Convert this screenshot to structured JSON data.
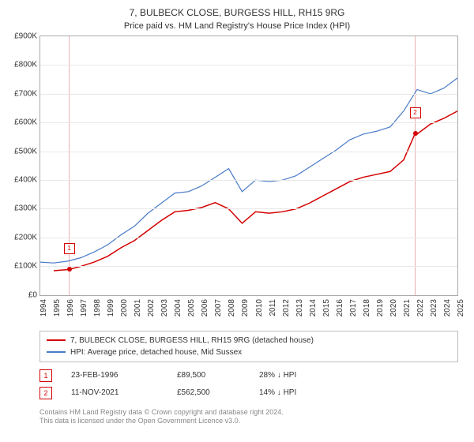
{
  "title": "7, BULBECK CLOSE, BURGESS HILL, RH15 9RG",
  "subtitle": "Price paid vs. HM Land Registry's House Price Index (HPI)",
  "chart": {
    "type": "line",
    "background_color": "#ffffff",
    "grid_color": "#e8e8e8",
    "axis_color": "#aaaaaa",
    "label_fontsize": 10,
    "yaxis": {
      "min": 0,
      "max": 900000,
      "tick_step": 100000,
      "ticks": [
        "£0",
        "£100K",
        "£200K",
        "£300K",
        "£400K",
        "£500K",
        "£600K",
        "£700K",
        "£800K",
        "£900K"
      ]
    },
    "xaxis": {
      "min": 1994,
      "max": 2025,
      "labels": [
        "1994",
        "1995",
        "1996",
        "1997",
        "1998",
        "1999",
        "2000",
        "2001",
        "2002",
        "2003",
        "2004",
        "2005",
        "2006",
        "2007",
        "2008",
        "2009",
        "2010",
        "2011",
        "2012",
        "2013",
        "2014",
        "2015",
        "2016",
        "2017",
        "2018",
        "2019",
        "2020",
        "2021",
        "2022",
        "2023",
        "2024",
        "2025"
      ]
    },
    "series": [
      {
        "name": "property",
        "color": "#d40000",
        "line_width": 1.5,
        "legend_label": "7, BULBECK CLOSE, BURGESS HILL, RH15 9RG (detached house)",
        "points": [
          [
            1995.0,
            85000
          ],
          [
            1996.15,
            89500
          ],
          [
            1997,
            100000
          ],
          [
            1998,
            115000
          ],
          [
            1999,
            135000
          ],
          [
            2000,
            165000
          ],
          [
            2001,
            190000
          ],
          [
            2002,
            225000
          ],
          [
            2003,
            260000
          ],
          [
            2004,
            290000
          ],
          [
            2005,
            295000
          ],
          [
            2006,
            305000
          ],
          [
            2007,
            322000
          ],
          [
            2008,
            300000
          ],
          [
            2009,
            250000
          ],
          [
            2010,
            290000
          ],
          [
            2011,
            285000
          ],
          [
            2012,
            290000
          ],
          [
            2013,
            300000
          ],
          [
            2014,
            320000
          ],
          [
            2015,
            345000
          ],
          [
            2016,
            370000
          ],
          [
            2017,
            395000
          ],
          [
            2018,
            410000
          ],
          [
            2019,
            420000
          ],
          [
            2020,
            430000
          ],
          [
            2021,
            470000
          ],
          [
            2021.86,
            562500
          ],
          [
            2022,
            560000
          ],
          [
            2023,
            595000
          ],
          [
            2024,
            615000
          ],
          [
            2025,
            640000
          ]
        ]
      },
      {
        "name": "hpi",
        "color": "#4a7bc8",
        "line_width": 1.2,
        "legend_label": "HPI: Average price, detached house, Mid Sussex",
        "points": [
          [
            1994,
            115000
          ],
          [
            1995,
            112000
          ],
          [
            1996,
            118000
          ],
          [
            1997,
            130000
          ],
          [
            1998,
            150000
          ],
          [
            1999,
            175000
          ],
          [
            2000,
            210000
          ],
          [
            2001,
            240000
          ],
          [
            2002,
            285000
          ],
          [
            2003,
            320000
          ],
          [
            2004,
            355000
          ],
          [
            2005,
            360000
          ],
          [
            2006,
            380000
          ],
          [
            2007,
            410000
          ],
          [
            2008,
            440000
          ],
          [
            2009,
            360000
          ],
          [
            2010,
            400000
          ],
          [
            2011,
            395000
          ],
          [
            2012,
            400000
          ],
          [
            2013,
            415000
          ],
          [
            2014,
            445000
          ],
          [
            2015,
            475000
          ],
          [
            2016,
            505000
          ],
          [
            2017,
            540000
          ],
          [
            2018,
            560000
          ],
          [
            2019,
            570000
          ],
          [
            2020,
            585000
          ],
          [
            2021,
            640000
          ],
          [
            2022,
            715000
          ],
          [
            2023,
            700000
          ],
          [
            2024,
            720000
          ],
          [
            2025,
            755000
          ]
        ]
      }
    ],
    "sale_markers": [
      {
        "id": "1",
        "year": 1996.15,
        "value": 89500,
        "color": "#d40000",
        "label_offset_y": -26
      },
      {
        "id": "2",
        "year": 2021.86,
        "value": 562500,
        "color": "#d40000",
        "label_offset_y": -26
      }
    ],
    "vlines": [
      {
        "year": 1996.15,
        "color": "#e8b0b0"
      },
      {
        "year": 2021.86,
        "color": "#e8b0b0"
      }
    ]
  },
  "legend": {
    "rows": [
      {
        "color": "#d40000",
        "label_path": "chart.series.0.legend_label"
      },
      {
        "color": "#4a7bc8",
        "label_path": "chart.series.1.legend_label"
      }
    ]
  },
  "marker_table": {
    "rows": [
      {
        "id": "1",
        "color": "#d40000",
        "date": "23-FEB-1996",
        "price": "£89,500",
        "hpi": "28% ↓ HPI"
      },
      {
        "id": "2",
        "color": "#d40000",
        "date": "11-NOV-2021",
        "price": "£562,500",
        "hpi": "14% ↓ HPI"
      }
    ]
  },
  "footer_line1": "Contains HM Land Registry data © Crown copyright and database right 2024.",
  "footer_line2": "This data is licensed under the Open Government Licence v3.0."
}
